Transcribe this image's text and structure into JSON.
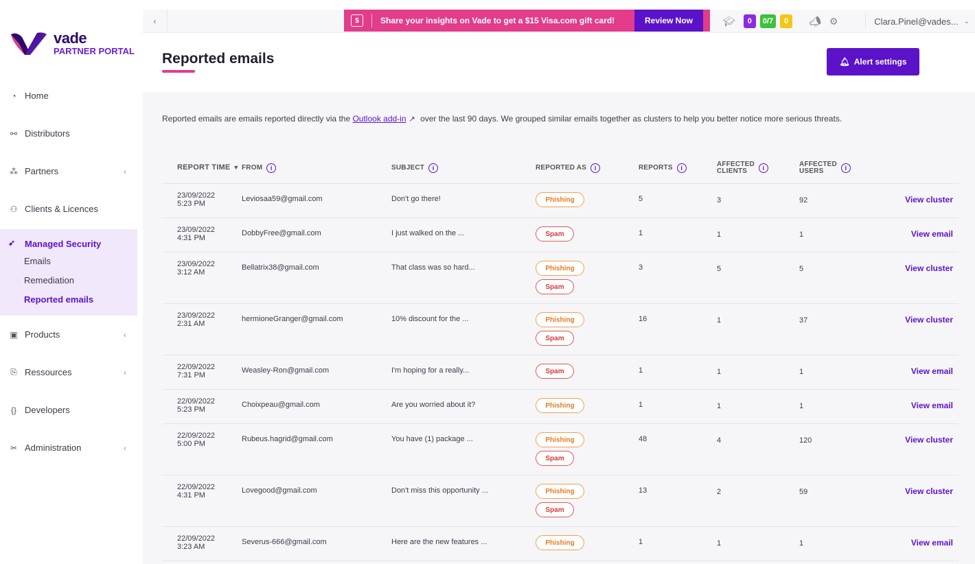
{
  "logo": {
    "brand": "vade",
    "subtitle": "PARTNER PORTAL"
  },
  "sidebar": {
    "items": [
      {
        "label": "Home",
        "icon": "gauge-icon"
      },
      {
        "label": "Distributors",
        "icon": "handshake-icon"
      },
      {
        "label": "Partners",
        "icon": "network-icon"
      },
      {
        "label": "Clients & Licences",
        "icon": "users-icon"
      }
    ],
    "group": {
      "title": "Managed Security",
      "subs": [
        "Emails",
        "Remediation",
        "Reported emails"
      ],
      "active": "Reported emails"
    },
    "items2": [
      {
        "label": "Products",
        "icon": "box-icon"
      },
      {
        "label": "Ressources",
        "icon": "resources-icon"
      },
      {
        "label": "Developers",
        "icon": "braces-icon"
      },
      {
        "label": "Administration",
        "icon": "tools-icon"
      }
    ]
  },
  "topbar": {
    "promo_text": "Share your insights on Vade to get a $15 Visa.com gift card!",
    "review_label": "Review Now",
    "badges": [
      {
        "text": "0",
        "color": "#8a2be2"
      },
      {
        "text": "0/7",
        "color": "#3cc13b"
      },
      {
        "text": "0",
        "color": "#f5c518"
      }
    ],
    "user": "Clara.Pinel@vades..."
  },
  "header": {
    "title": "Reported emails",
    "alert_button": "Alert settings"
  },
  "description": {
    "before": "Reported emails are emails reported directly via the ",
    "link": "Outlook add-in",
    "after": " over the last 90 days.  We grouped similar emails together as clusters to help you better notice more serious threats."
  },
  "table": {
    "columns": {
      "time": "REPORT TIME",
      "from": "FROM",
      "subject": "SUBJECT",
      "reported_as": "REPORTED AS",
      "reports": "REPORTS",
      "clients_1": "AFFECTED",
      "clients_2": "CLIENTS",
      "users_1": "AFFECTED",
      "users_2": "USERS"
    },
    "rows": [
      {
        "date": "23/09/2022",
        "time": "5:23 PM",
        "from": "Leviosaa59@gmail.com",
        "subject": "Don't go there!",
        "tags": [
          "Phishing"
        ],
        "reports": "5",
        "clients": "3",
        "users": "92",
        "action": "View cluster"
      },
      {
        "date": "23/09/2022",
        "time": "4:31 PM",
        "from": "DobbyFree@gmail.com",
        "subject": "I just walked on the ...",
        "tags": [
          "Spam"
        ],
        "reports": "1",
        "clients": "1",
        "users": "1",
        "action": "View email"
      },
      {
        "date": "23/09/2022",
        "time": "3:12 AM",
        "from": "Bellatrix38@gmail.com",
        "subject": "That class was so hard...",
        "tags": [
          "Phishing",
          "Spam"
        ],
        "reports": "3",
        "clients": "5",
        "users": "5",
        "action": "View cluster"
      },
      {
        "date": "23/09/2022",
        "time": "2:31 AM",
        "from": "hermioneGranger@gmail.com",
        "subject": "10% discount for the ...",
        "tags": [
          "Phishing",
          "Spam"
        ],
        "reports": "16",
        "clients": "1",
        "users": "37",
        "action": "View cluster"
      },
      {
        "date": "22/09/2022",
        "time": "7:31 PM",
        "from": "Weasley-Ron@gmail.com",
        "subject": "I'm hoping for a really...",
        "tags": [
          "Spam"
        ],
        "reports": "1",
        "clients": "1",
        "users": "1",
        "action": "View email"
      },
      {
        "date": "22/09/2022",
        "time": "5:23 PM",
        "from": "Choixpeau@gmail.com",
        "subject": "Are you worried about it?",
        "tags": [
          "Phishing"
        ],
        "reports": "1",
        "clients": "1",
        "users": "1",
        "action": "View email"
      },
      {
        "date": "22/09/2022",
        "time": "5:00 PM",
        "from": "Rubeus.hagrid@gmail.com",
        "subject": "You have (1) package ...",
        "tags": [
          "Phishing",
          "Spam"
        ],
        "reports": "48",
        "clients": "4",
        "users": "120",
        "action": "View cluster"
      },
      {
        "date": "22/09/2022",
        "time": "4:31 PM",
        "from": "Lovegood@gmail.com",
        "subject": "Don't miss this opportunity ...",
        "tags": [
          "Phishing",
          "Spam"
        ],
        "reports": "13",
        "clients": "2",
        "users": "59",
        "action": "View cluster"
      },
      {
        "date": "22/09/2022",
        "time": "3:23 AM",
        "from": "Severus-666@gmail.com",
        "subject": "Here are the new features ...",
        "tags": [
          "Phishing"
        ],
        "reports": "1",
        "clients": "1",
        "users": "1",
        "action": "View email"
      }
    ]
  }
}
